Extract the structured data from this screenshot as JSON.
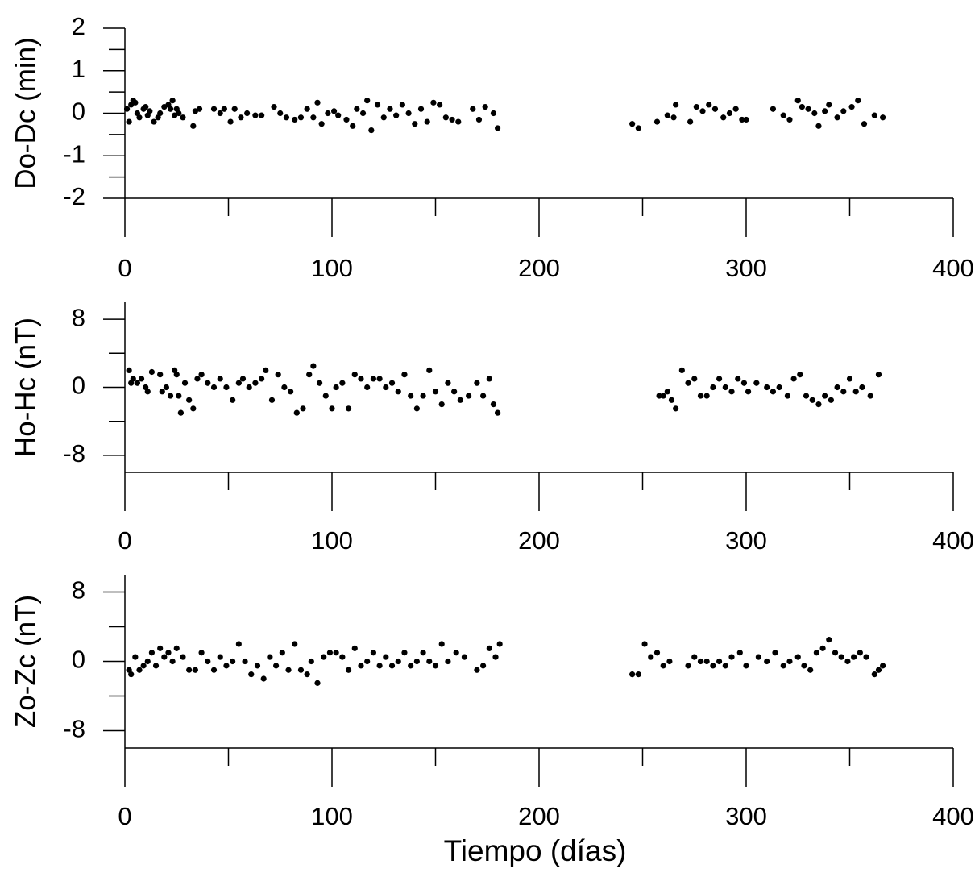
{
  "chart_data": [
    {
      "type": "scatter",
      "ylabel": "Do-Dc (min)",
      "color": "#000000",
      "x": [
        1,
        2,
        3,
        4,
        5,
        6,
        7,
        9,
        10,
        11,
        12,
        14,
        16,
        17,
        19,
        21,
        22,
        23,
        24,
        25,
        26,
        28,
        33,
        34,
        36,
        43,
        46,
        48,
        51,
        53,
        56,
        59,
        63,
        66,
        72,
        75,
        78,
        82,
        85,
        88,
        91,
        93,
        95,
        98,
        101,
        103,
        107,
        110,
        112,
        115,
        117,
        119,
        122,
        125,
        128,
        131,
        134,
        137,
        140,
        143,
        146,
        149,
        152,
        155,
        158,
        161,
        168,
        171,
        174,
        178,
        180,
        245,
        248,
        257,
        262,
        265,
        266,
        273,
        276,
        279,
        282,
        285,
        289,
        292,
        295,
        298,
        300,
        313,
        318,
        321,
        325,
        327,
        330,
        333,
        335,
        338,
        340,
        344,
        347,
        351,
        354,
        357,
        362,
        366
      ],
      "y": [
        0.1,
        -0.2,
        0.2,
        0.3,
        0.25,
        0,
        -0.1,
        0.1,
        0.15,
        -0.05,
        0.05,
        -0.2,
        -0.1,
        0,
        0.15,
        0.2,
        0.1,
        0.3,
        -0.05,
        0.1,
        0,
        -0.1,
        -0.3,
        0.05,
        0.1,
        0.1,
        0,
        0.1,
        -0.2,
        0.1,
        -0.1,
        0,
        -0.05,
        -0.05,
        0.15,
        0,
        -0.1,
        -0.15,
        -0.1,
        0.1,
        -0.1,
        0.25,
        -0.25,
        0,
        0.05,
        -0.05,
        -0.15,
        -0.3,
        0.1,
        0,
        0.3,
        -0.4,
        0.2,
        -0.1,
        0.1,
        -0.05,
        0.2,
        0,
        -0.25,
        0.1,
        -0.2,
        0.25,
        0.2,
        -0.1,
        -0.15,
        -0.2,
        0.1,
        -0.15,
        0.15,
        0,
        -0.35,
        -0.25,
        -0.35,
        -0.2,
        -0.05,
        -0.1,
        0.2,
        -0.2,
        0.15,
        0.05,
        0.2,
        0.1,
        -0.1,
        0,
        0.1,
        -0.15,
        -0.15,
        0.1,
        -0.05,
        -0.15,
        0.3,
        0.15,
        0.1,
        0,
        -0.3,
        0.05,
        0.2,
        -0.1,
        0.05,
        0.15,
        0.3,
        -0.25,
        -0.05,
        -0.1
      ],
      "xlim": [
        0,
        400
      ],
      "xticks": [
        0,
        100,
        200,
        300,
        400
      ],
      "xticks_minor": [
        50,
        150,
        250,
        350
      ],
      "ylim": [
        -2,
        2
      ],
      "yticks": [
        -2,
        -1,
        0,
        1,
        2
      ],
      "yticks_minor": [
        -1.5,
        -0.5,
        0.5,
        1.5
      ]
    },
    {
      "type": "scatter",
      "ylabel": "Ho-Hc (nT)",
      "color": "#000000",
      "x": [
        2,
        3,
        4,
        6,
        8,
        10,
        11,
        13,
        17,
        18,
        20,
        22,
        24,
        25,
        26,
        27,
        29,
        31,
        33,
        35,
        37,
        40,
        43,
        46,
        49,
        52,
        55,
        57,
        60,
        63,
        66,
        68,
        71,
        74,
        77,
        80,
        83,
        86,
        89,
        91,
        94,
        97,
        100,
        102,
        105,
        108,
        111,
        114,
        117,
        120,
        123,
        126,
        129,
        132,
        135,
        138,
        141,
        144,
        147,
        150,
        153,
        156,
        159,
        162,
        166,
        170,
        173,
        176,
        178,
        180,
        258,
        260,
        262,
        264,
        266,
        269,
        272,
        275,
        278,
        281,
        284,
        287,
        290,
        293,
        296,
        299,
        301,
        305,
        310,
        313,
        316,
        320,
        323,
        326,
        329,
        332,
        335,
        338,
        341,
        344,
        347,
        350,
        353,
        356,
        360,
        364
      ],
      "y": [
        2,
        0.5,
        1,
        0.5,
        1,
        0,
        -0.5,
        1.8,
        1.5,
        -0.5,
        0,
        -1,
        2,
        1.5,
        -1,
        -3,
        0.5,
        -1.5,
        -2.5,
        1,
        1.5,
        0.5,
        0,
        1,
        0,
        -1.5,
        0.5,
        1,
        0,
        0.5,
        1,
        2,
        -1.5,
        1.5,
        0,
        -0.5,
        -3,
        -2.5,
        1.5,
        2.5,
        0.5,
        -1,
        -2.5,
        0,
        0.5,
        -2.5,
        1.5,
        1,
        0,
        1,
        1,
        0,
        0.5,
        -0.5,
        1.5,
        -1,
        -2.5,
        -1,
        2,
        -0.5,
        -2,
        0.5,
        -0.5,
        -1.5,
        -1,
        0.5,
        -1,
        1,
        -2,
        -3,
        -1,
        -1,
        -0.5,
        -1.5,
        -2.5,
        2,
        0.5,
        1,
        -1,
        -1,
        0,
        1,
        0,
        -0.5,
        1,
        0.5,
        -0.5,
        0.5,
        0,
        -0.5,
        0,
        -1,
        1,
        1.5,
        -1,
        -1.5,
        -2,
        -1,
        -1.5,
        0,
        -0.5,
        1,
        -0.5,
        0,
        -1,
        1.5
      ],
      "xlim": [
        0,
        400
      ],
      "xticks": [
        0,
        100,
        200,
        300,
        400
      ],
      "xticks_minor": [
        50,
        150,
        250,
        350
      ],
      "ylim": [
        -10,
        10
      ],
      "yticks": [
        -8,
        0,
        8
      ],
      "yticks_minor": [
        -4,
        4
      ]
    },
    {
      "type": "scatter",
      "ylabel": "Zo-Zc (nT)",
      "xlabel": "Tiempo (días)",
      "color": "#000000",
      "x": [
        2,
        3,
        5,
        7,
        9,
        11,
        13,
        15,
        17,
        19,
        21,
        23,
        25,
        28,
        31,
        34,
        37,
        40,
        43,
        46,
        49,
        52,
        55,
        58,
        61,
        64,
        67,
        70,
        73,
        76,
        79,
        82,
        85,
        88,
        90,
        93,
        96,
        99,
        102,
        105,
        108,
        111,
        114,
        117,
        120,
        123,
        126,
        129,
        132,
        135,
        138,
        141,
        144,
        147,
        150,
        153,
        156,
        160,
        164,
        170,
        173,
        176,
        179,
        181,
        245,
        248,
        251,
        254,
        257,
        260,
        263,
        272,
        275,
        278,
        281,
        284,
        287,
        290,
        293,
        297,
        300,
        306,
        310,
        314,
        318,
        321,
        325,
        328,
        331,
        334,
        337,
        340,
        343,
        346,
        349,
        352,
        355,
        358,
        362,
        364,
        366
      ],
      "y": [
        -1,
        -1.5,
        0.5,
        -1,
        -0.5,
        0,
        1,
        -0.5,
        1.5,
        0.5,
        1,
        0,
        1.5,
        0.5,
        -1,
        -1,
        1,
        0,
        -1,
        0.5,
        -0.5,
        0,
        2,
        0,
        -1.5,
        -0.5,
        -2,
        0.5,
        -0.5,
        1,
        -1,
        2,
        -1,
        -1.5,
        0,
        -2.5,
        0.5,
        1,
        1,
        0.5,
        -1,
        1.5,
        -0.5,
        0,
        1,
        -0.5,
        0.5,
        -0.5,
        0,
        1,
        -0.5,
        0,
        1,
        0,
        -0.5,
        2,
        0,
        1,
        0.5,
        -1,
        -0.5,
        1.5,
        0.5,
        2,
        -1.5,
        -1.5,
        2,
        0.5,
        1,
        -0.5,
        0,
        -0.5,
        0.5,
        0,
        0,
        -0.5,
        0,
        -0.5,
        0.5,
        1,
        -0.5,
        0.5,
        0,
        1,
        -0.5,
        0,
        0.5,
        -0.5,
        -1,
        1,
        1.5,
        2.5,
        1,
        0.5,
        0,
        0.5,
        1,
        0.5,
        -1.5,
        -1,
        -0.5
      ],
      "xlim": [
        0,
        400
      ],
      "xticks": [
        0,
        100,
        200,
        300,
        400
      ],
      "xticks_minor": [
        50,
        150,
        250,
        350
      ],
      "ylim": [
        -10,
        10
      ],
      "yticks": [
        -8,
        0,
        8
      ],
      "yticks_minor": [
        -4,
        4
      ]
    }
  ]
}
